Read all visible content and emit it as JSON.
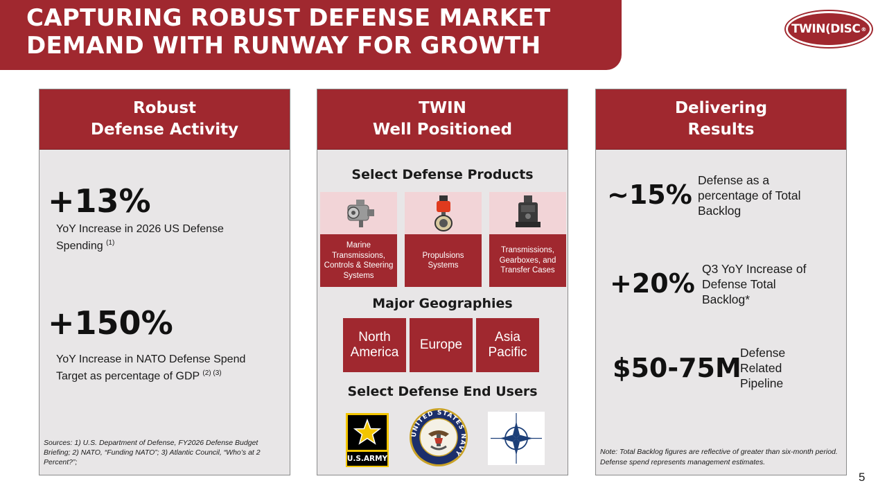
{
  "title": {
    "line1": "CAPTURING ROBUST DEFENSE MARKET",
    "line2": "DEMAND WITH RUNWAY FOR GROWTH"
  },
  "logo": {
    "text": "TWIN(DISC",
    "registered": "®"
  },
  "panels": {
    "left": {
      "heading1": "Robust",
      "heading2": "Defense Activity",
      "stat1": {
        "value": "+13%",
        "desc": "YoY Increase in 2026 US  Defense Spending",
        "sup": "(1)"
      },
      "stat2": {
        "value": "+150%",
        "desc": "YoY Increase in NATO Defense Spend Target as percentage of GDP",
        "sup": "(2) (3)"
      },
      "sources": "Sources: 1) U.S. Department of Defense, FY2026 Defense Budget Briefing; 2) NATO, “Funding NATO”; 3) Atlantic Council, “Who’s at 2 Percent?”;"
    },
    "middle": {
      "heading1": "TWIN",
      "heading2": "Well Positioned",
      "products_title": "Select Defense Products",
      "products": [
        {
          "label": "Marine Transmissions, Controls & Steering Systems",
          "icon": "marine-transmission-icon"
        },
        {
          "label": "Propulsions Systems",
          "icon": "propulsion-system-icon"
        },
        {
          "label": "Transmissions, Gearboxes, and Transfer Cases",
          "icon": "gearbox-icon"
        }
      ],
      "geographies_title": "Major Geographies",
      "geographies": [
        {
          "line1": "North",
          "line2": "America"
        },
        {
          "line1": "Europe",
          "line2": ""
        },
        {
          "line1": "Asia",
          "line2": "Pacific"
        }
      ],
      "end_users_title": "Select Defense End Users",
      "end_users": {
        "army": {
          "text": "U.S.ARMY"
        },
        "navy": {
          "ring_text": "UNITED STATES NAVY"
        },
        "nato": {
          "icon": "nato-compass-icon"
        }
      }
    },
    "right": {
      "heading1": "Delivering",
      "heading2": "Results",
      "stat1": {
        "value": "~15%",
        "desc": "Defense as a percentage of Total Backlog"
      },
      "stat2": {
        "value": "+20%",
        "desc": "Q3 YoY Increase of Defense Total Backlog*"
      },
      "stat3": {
        "value": "$50-75M",
        "desc": "Defense Related Pipeline"
      },
      "note": "Note: Total Backlog figures are reflective of greater than six-month period. Defense spend represents management estimates."
    }
  },
  "page_number": "5",
  "colors": {
    "brand_red": "#a0282f",
    "panel_bg": "#e8e6e7",
    "product_img_bg": "#f2d4d7"
  }
}
